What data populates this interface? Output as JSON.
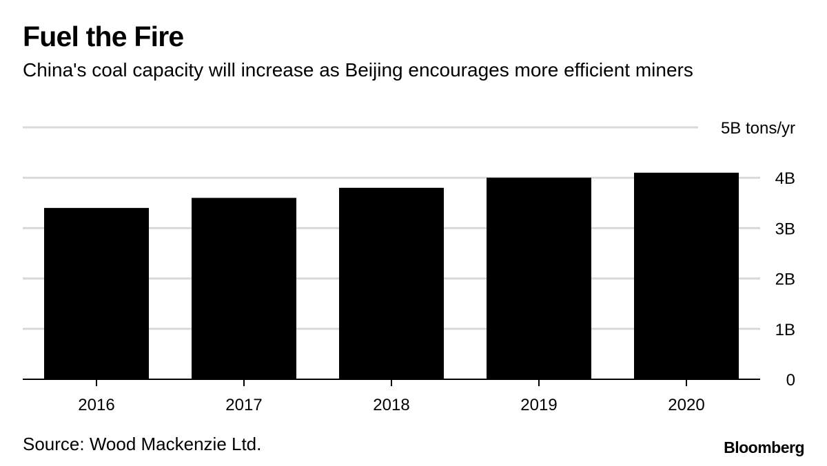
{
  "header": {
    "title": "Fuel the Fire",
    "subtitle": "China's coal capacity will increase as Beijing encourages more efficient miners"
  },
  "footer": {
    "source": "Source: Wood Mackenzie Ltd.",
    "brand": "Bloomberg"
  },
  "colors": {
    "bar": "#000000",
    "grid": "#d9d9d9",
    "axis": "#000000"
  },
  "chart_data": {
    "type": "bar",
    "title": "Fuel the Fire",
    "subtitle": "China's coal capacity will increase as Beijing encourages more efficient miners",
    "categories": [
      "2016",
      "2017",
      "2018",
      "2019",
      "2020"
    ],
    "values": [
      3.4,
      3.6,
      3.8,
      4.0,
      4.1
    ],
    "unit": "B tons/yr",
    "ylim": [
      0,
      5
    ],
    "y_ticks": [
      {
        "value": 0,
        "label": "0"
      },
      {
        "value": 1,
        "label": "1B"
      },
      {
        "value": 2,
        "label": "2B"
      },
      {
        "value": 3,
        "label": "3B"
      },
      {
        "value": 4,
        "label": "4B"
      },
      {
        "value": 5,
        "label": "5B tons/yr"
      }
    ],
    "y_axis_position": "right",
    "grid": true,
    "legend": "none"
  }
}
